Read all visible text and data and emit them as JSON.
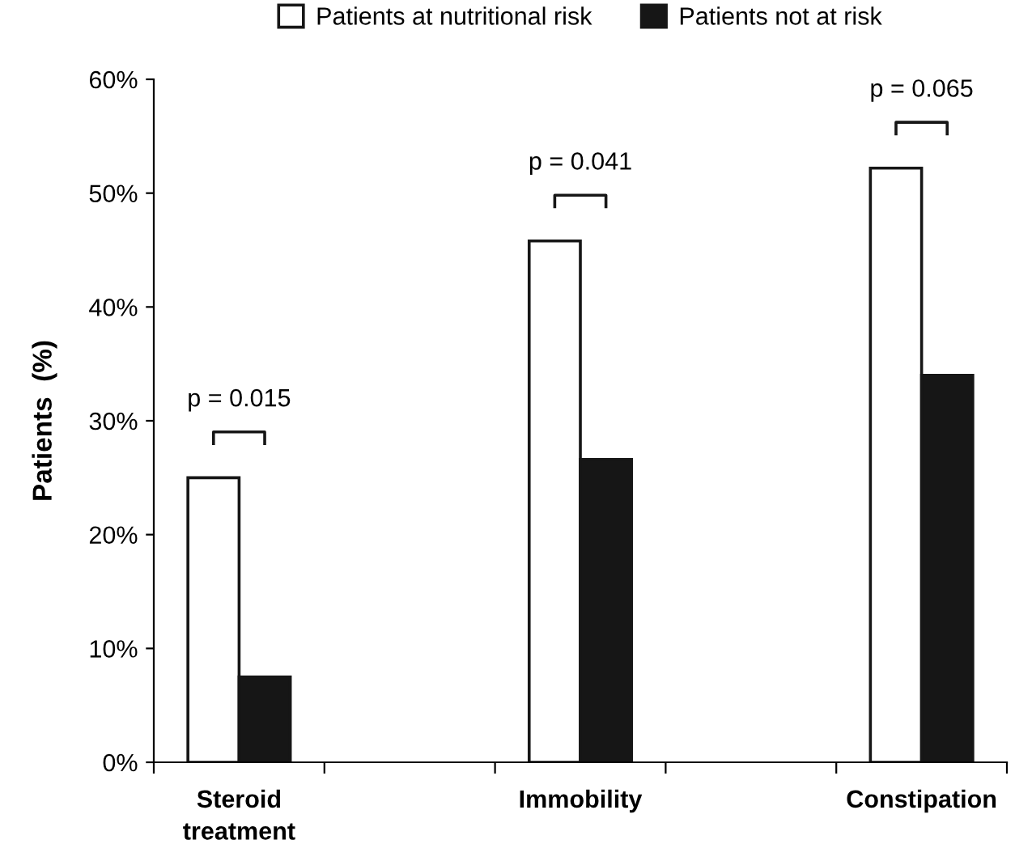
{
  "chart_data": {
    "type": "bar",
    "ylabel": "Patients  (%)",
    "categories": [
      "Steroid\ntreatment",
      null,
      "Immobility",
      null,
      "Constipation"
    ],
    "series": [
      {
        "name": "Patients at nutritional risk",
        "color": "#ffffff",
        "values": [
          25,
          null,
          45.8,
          null,
          52.2
        ]
      },
      {
        "name": "Patients not at risk",
        "color": "#161616",
        "values": [
          7.5,
          null,
          26.6,
          null,
          34
        ]
      }
    ],
    "ylim": [
      0,
      60
    ],
    "yticks": [
      {
        "value": 0,
        "label": "0%"
      },
      {
        "value": 10,
        "label": "10%"
      },
      {
        "value": 20,
        "label": "20%"
      },
      {
        "value": 30,
        "label": "30%"
      },
      {
        "value": 40,
        "label": "40%"
      },
      {
        "value": 50,
        "label": "50%"
      },
      {
        "value": 60,
        "label": "60%"
      }
    ],
    "annotations": [
      "p = 0.015",
      "p = 0.041",
      "p = 0.065"
    ],
    "legend": "top",
    "grid": false
  }
}
